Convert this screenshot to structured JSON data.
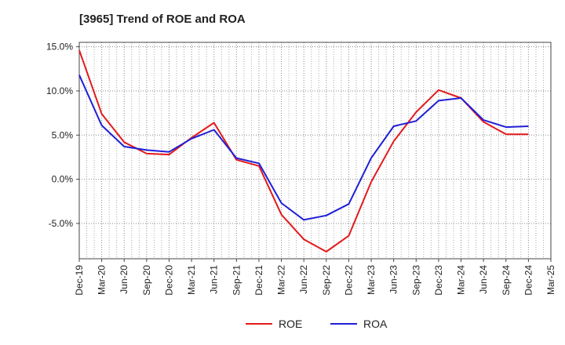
{
  "chart_data": {
    "type": "line",
    "title": "[3965]  Trend of ROE and ROA",
    "xlabel": "",
    "ylabel": "",
    "x": [
      "Dec-19",
      "Mar-20",
      "Jun-20",
      "Sep-20",
      "Dec-20",
      "Mar-21",
      "Jun-21",
      "Sep-21",
      "Dec-21",
      "Mar-22",
      "Jun-22",
      "Sep-22",
      "Dec-22",
      "Mar-23",
      "Jun-23",
      "Sep-23",
      "Dec-23",
      "Mar-24",
      "Jun-24",
      "Sep-24",
      "Dec-24",
      "Mar-25"
    ],
    "y_ticks": [
      "15.0%",
      "10.0%",
      "5.0%",
      "0.0%",
      "-5.0%"
    ],
    "y_tick_values": [
      15,
      10,
      5,
      0,
      -5
    ],
    "ylim": [
      -9,
      15.5
    ],
    "grid": true,
    "legend": "bottom",
    "series": [
      {
        "name": "ROE",
        "color": "#e31a1c",
        "values": [
          14.6,
          7.4,
          4.2,
          2.9,
          2.8,
          4.7,
          6.4,
          2.2,
          1.5,
          -4.0,
          -6.8,
          -8.2,
          -6.4,
          -0.3,
          4.3,
          7.6,
          10.1,
          9.2,
          6.5,
          5.1,
          5.1,
          null
        ]
      },
      {
        "name": "ROA",
        "color": "#1f1fd6",
        "values": [
          11.8,
          6.1,
          3.7,
          3.3,
          3.1,
          4.6,
          5.6,
          2.4,
          1.8,
          -2.7,
          -4.6,
          -4.1,
          -2.8,
          2.4,
          6.0,
          6.6,
          8.9,
          9.2,
          6.7,
          5.9,
          6.0,
          null
        ]
      }
    ]
  }
}
